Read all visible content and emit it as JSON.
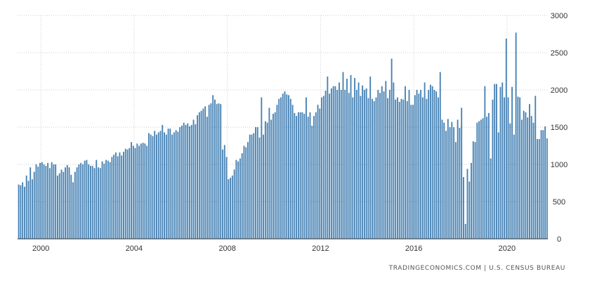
{
  "chart_data": {
    "type": "bar",
    "x_ticks": [
      "2000",
      "2004",
      "2008",
      "2012",
      "2016",
      "2020"
    ],
    "y_ticks": [
      "3000",
      "2500",
      "2000",
      "1500",
      "1000",
      "500",
      "0"
    ],
    "ylim": [
      0,
      3000
    ],
    "start": "1999-01",
    "grid": true,
    "bar_color": "#4682b4",
    "values": [
      730,
      720,
      760,
      700,
      850,
      780,
      960,
      800,
      900,
      1000,
      970,
      1020,
      1030,
      1000,
      980,
      1020,
      950,
      1030,
      1000,
      1000,
      850,
      880,
      930,
      900,
      960,
      990,
      960,
      860,
      760,
      900,
      960,
      1000,
      1020,
      1000,
      1050,
      1060,
      1000,
      980,
      980,
      950,
      1060,
      960,
      950,
      1040,
      1010,
      1060,
      1050,
      1030,
      1100,
      1130,
      1160,
      1110,
      1160,
      1120,
      1170,
      1210,
      1200,
      1220,
      1300,
      1250,
      1220,
      1280,
      1250,
      1280,
      1290,
      1280,
      1250,
      1420,
      1400,
      1380,
      1450,
      1400,
      1430,
      1450,
      1530,
      1430,
      1400,
      1480,
      1480,
      1400,
      1430,
      1460,
      1440,
      1500,
      1520,
      1560,
      1530,
      1550,
      1510,
      1530,
      1600,
      1540,
      1660,
      1700,
      1720,
      1750,
      1780,
      1640,
      1800,
      1820,
      1930,
      1870,
      1810,
      1820,
      1810,
      1200,
      1260,
      1100,
      800,
      820,
      850,
      930,
      1060,
      1040,
      1080,
      1150,
      1250,
      1230,
      1300,
      1400,
      1400,
      1420,
      1500,
      1500,
      1360,
      1900,
      1400,
      1580,
      1560,
      1760,
      1600,
      1680,
      1700,
      1800,
      1880,
      1900,
      1950,
      1980,
      1940,
      1930,
      1880,
      1800,
      1690,
      1650,
      1700,
      1700,
      1700,
      1680,
      1900,
      1640,
      1700,
      1520,
      1650,
      1700,
      1800,
      1750,
      1900,
      1920,
      1990,
      2180,
      1950,
      2020,
      2050,
      2050,
      2000,
      2100,
      2000,
      2240,
      2000,
      2150,
      1960,
      2200,
      1900,
      2160,
      2000,
      2100,
      1920,
      2060,
      2000,
      2020,
      1890,
      2180,
      1880,
      1850,
      1900,
      2000,
      1960,
      2050,
      1980,
      2120,
      1890,
      2000,
      2420,
      2100,
      1870,
      1900,
      1840,
      1880,
      1870,
      2050,
      1850,
      2000,
      1800,
      1800,
      1930,
      2000,
      1950,
      2000,
      1900,
      2100,
      1880,
      2000,
      2070,
      2050,
      2000,
      1980,
      1900,
      2240,
      1600,
      1560,
      1450,
      1610,
      1500,
      1570,
      1500,
      1300,
      1600,
      1490,
      1760,
      830,
      200,
      940,
      770,
      1020,
      1310,
      1300,
      1560,
      1580,
      1600,
      1620,
      2050,
      1640,
      1690,
      1080,
      1870,
      2080,
      2080,
      1430,
      2040,
      2100,
      1900,
      2690,
      1900,
      1550,
      2040,
      1400,
      2770,
      1910,
      1900,
      1600,
      1720,
      1700,
      1630,
      1810,
      1650,
      1560,
      1920,
      1340,
      1340,
      1460,
      1460,
      1510,
      1350
    ]
  },
  "source": {
    "text": "TRADINGECONOMICS.COM  |  U.S. CENSUS BUREAU"
  }
}
